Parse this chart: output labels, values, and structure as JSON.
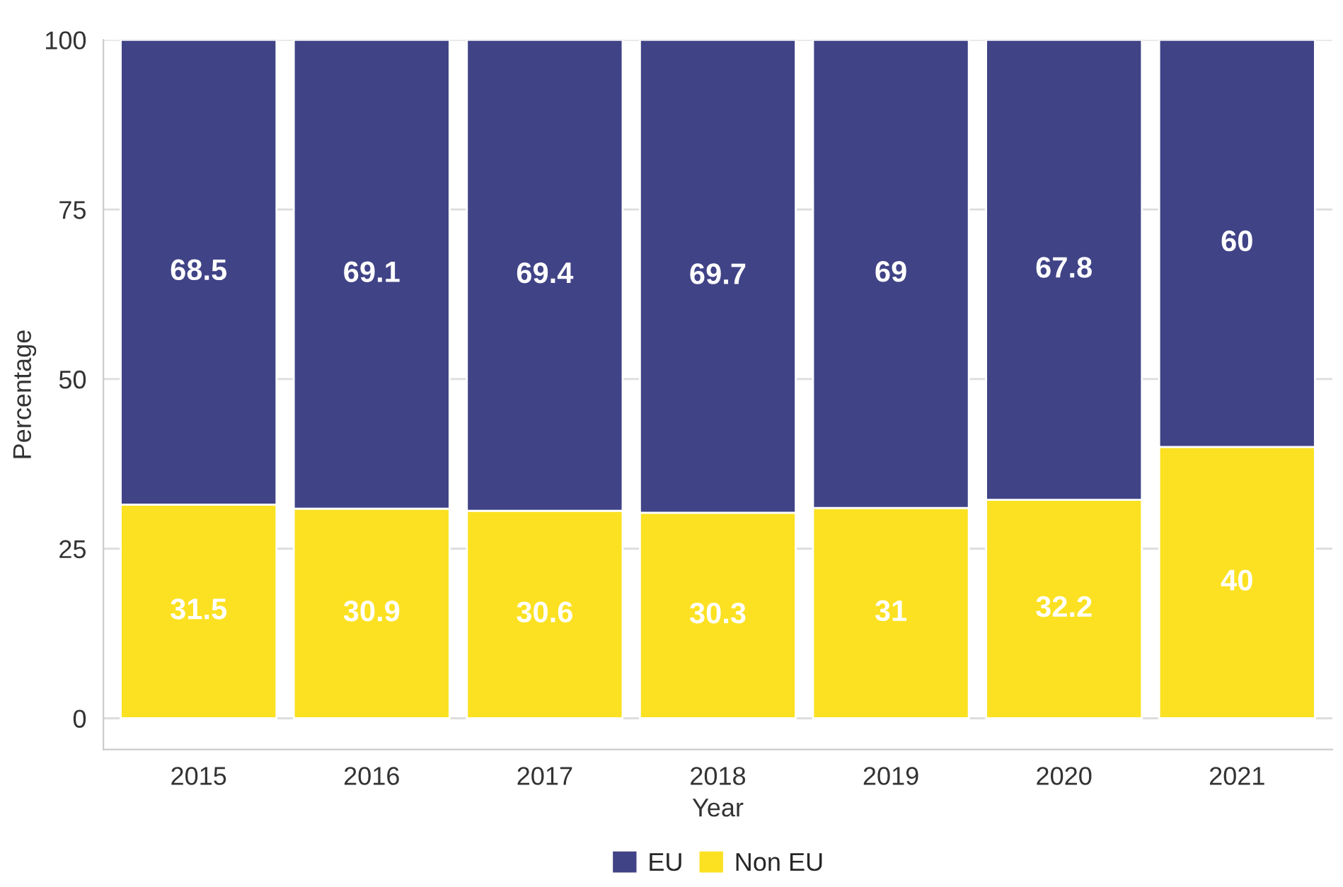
{
  "chart_data": {
    "type": "bar",
    "stacked": true,
    "xlabel": "Year",
    "ylabel": "Percentage",
    "categories": [
      "2015",
      "2016",
      "2017",
      "2018",
      "2019",
      "2020",
      "2021"
    ],
    "series": [
      {
        "name": "Non EU",
        "color": "#fbe122",
        "values": [
          31.5,
          30.9,
          30.6,
          30.3,
          31,
          32.2,
          40
        ]
      },
      {
        "name": "EU",
        "color": "#404386",
        "values": [
          68.5,
          69.1,
          69.4,
          69.7,
          69,
          67.8,
          60
        ]
      }
    ],
    "ylim": [
      -4.6,
      100
    ],
    "yticks": [
      0,
      25,
      50,
      75,
      100
    ],
    "grid": "y",
    "legend": "bottom",
    "data_labels": true
  }
}
